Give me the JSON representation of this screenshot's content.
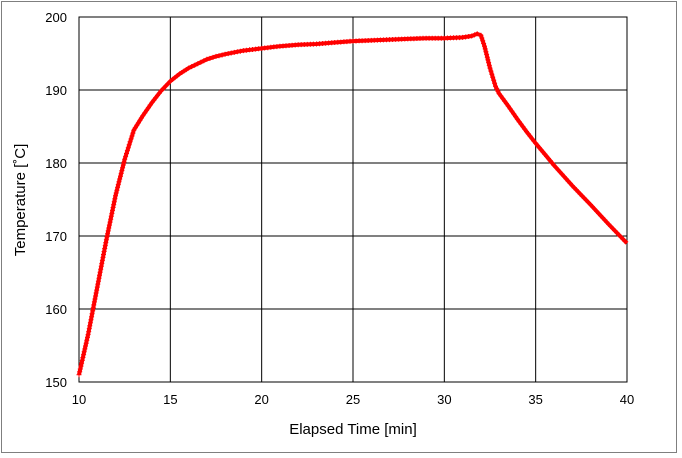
{
  "chart_data": {
    "type": "line",
    "title": "",
    "xlabel": "Elapsed Time [min]",
    "ylabel": "Temperature [˚C]",
    "xlim": [
      10,
      40
    ],
    "ylim": [
      150,
      200
    ],
    "x_ticks": [
      10,
      15,
      20,
      25,
      30,
      35,
      40
    ],
    "y_ticks": [
      150,
      160,
      170,
      180,
      190,
      200
    ],
    "grid": true,
    "legend": "none",
    "series": [
      {
        "color": "#ff0000",
        "marker": "cross",
        "points": [
          [
            10.0,
            151.0
          ],
          [
            10.5,
            156.5
          ],
          [
            11.0,
            163.0
          ],
          [
            11.5,
            169.5
          ],
          [
            12.0,
            175.5
          ],
          [
            12.5,
            180.5
          ],
          [
            13.0,
            184.5
          ],
          [
            13.5,
            186.5
          ],
          [
            14.0,
            188.3
          ],
          [
            14.5,
            189.9
          ],
          [
            15.0,
            191.2
          ],
          [
            15.5,
            192.2
          ],
          [
            16.0,
            193.0
          ],
          [
            16.5,
            193.6
          ],
          [
            17.0,
            194.2
          ],
          [
            17.5,
            194.6
          ],
          [
            18.0,
            194.9
          ],
          [
            19.0,
            195.4
          ],
          [
            20.0,
            195.7
          ],
          [
            21.0,
            196.0
          ],
          [
            22.0,
            196.2
          ],
          [
            23.0,
            196.3
          ],
          [
            24.0,
            196.5
          ],
          [
            25.0,
            196.7
          ],
          [
            26.0,
            196.8
          ],
          [
            27.0,
            196.9
          ],
          [
            28.0,
            197.0
          ],
          [
            29.0,
            197.1
          ],
          [
            30.0,
            197.1
          ],
          [
            31.0,
            197.2
          ],
          [
            31.5,
            197.4
          ],
          [
            31.8,
            197.7
          ],
          [
            32.0,
            197.5
          ],
          [
            32.2,
            196.0
          ],
          [
            32.5,
            193.0
          ],
          [
            32.8,
            190.5
          ],
          [
            33.0,
            189.5
          ],
          [
            33.5,
            187.8
          ],
          [
            34.0,
            186.0
          ],
          [
            34.5,
            184.3
          ],
          [
            35.0,
            182.7
          ],
          [
            35.5,
            181.2
          ],
          [
            36.0,
            179.7
          ],
          [
            37.0,
            176.9
          ],
          [
            38.0,
            174.3
          ],
          [
            39.0,
            171.6
          ],
          [
            40.0,
            169.0
          ]
        ]
      }
    ]
  }
}
